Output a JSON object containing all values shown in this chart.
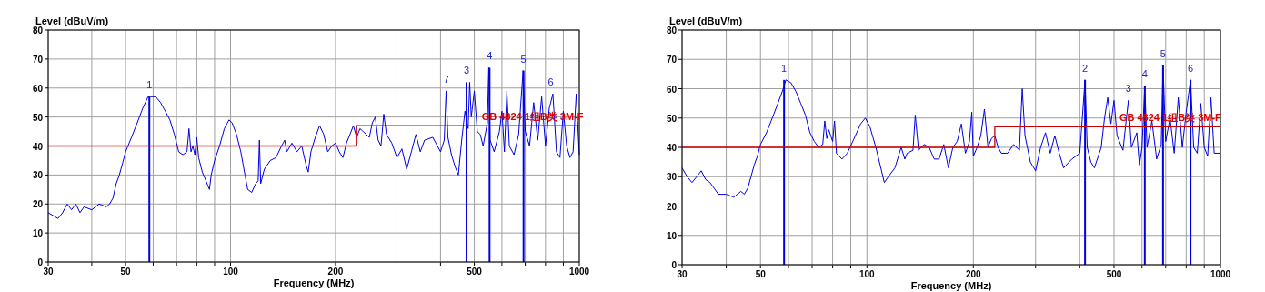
{
  "chart_data": [
    {
      "type": "line",
      "xlabel": "Frequency (MHz)",
      "ylabel": "Level (dBuV/m)",
      "log": "x",
      "grid": true,
      "xlim": [
        30,
        1000
      ],
      "ylim": [
        0,
        80
      ],
      "xticks": [
        30,
        {
          "value": 40,
          "label": null
        },
        50,
        {
          "value": 60,
          "label": null
        },
        {
          "value": 70,
          "label": null
        },
        {
          "value": 80,
          "label": null
        },
        {
          "value": 90,
          "label": null
        },
        100,
        200,
        {
          "value": 300,
          "label": null
        },
        {
          "value": 400,
          "label": null
        },
        500,
        {
          "value": 600,
          "label": null
        },
        {
          "value": 700,
          "label": null
        },
        {
          "value": 800,
          "label": null
        },
        {
          "value": 900,
          "label": null
        },
        1000
      ],
      "yticks": [
        0,
        10,
        20,
        30,
        40,
        50,
        60,
        70,
        80
      ],
      "series": [
        {
          "color": "#0000e6",
          "x": [
            30,
            31,
            32,
            33,
            34,
            35,
            36,
            37,
            38,
            40,
            42,
            44,
            45,
            46,
            47,
            48,
            49,
            50,
            52,
            54,
            56,
            58,
            59,
            61,
            63,
            65,
            67,
            69,
            70,
            71,
            73,
            75,
            76,
            77,
            78,
            79,
            80,
            81,
            83,
            85,
            87,
            88,
            90,
            93,
            96,
            99,
            101,
            104,
            107,
            110,
            112,
            115,
            118,
            120,
            121,
            122,
            125,
            130,
            135,
            140,
            143,
            145,
            150,
            155,
            160,
            165,
            167,
            170,
            175,
            180,
            185,
            190,
            195,
            200,
            205,
            210,
            215,
            220,
            225,
            230,
            235,
            240,
            250,
            255,
            260,
            265,
            270,
            275,
            280,
            290,
            300,
            310,
            320,
            330,
            340,
            350,
            360,
            380,
            400,
            410,
            415,
            420,
            430,
            440,
            450,
            460,
            470,
            480,
            485,
            490,
            500,
            510,
            520,
            530,
            545,
            550,
            555,
            570,
            590,
            600,
            610,
            620,
            630,
            650,
            670,
            690,
            700,
            720,
            740,
            760,
            780,
            800,
            820,
            840,
            860,
            880,
            900,
            920,
            940,
            960,
            980,
            1000
          ],
          "values": [
            17,
            16,
            15,
            17,
            20,
            18,
            20,
            17,
            19,
            18,
            20,
            19,
            20,
            22,
            27,
            30,
            34,
            38,
            43,
            48,
            53,
            57,
            57,
            57,
            55,
            52,
            49,
            44,
            41,
            38,
            37,
            38,
            46,
            38,
            40,
            37,
            43,
            36,
            31,
            28,
            25,
            30,
            35,
            40,
            46,
            49,
            48,
            44,
            38,
            30,
            25,
            24,
            27,
            28,
            42,
            27,
            32,
            35,
            36,
            40,
            42,
            38,
            41,
            38,
            40,
            33,
            31,
            38,
            43,
            47,
            44,
            38,
            40,
            41,
            38,
            36,
            41,
            44,
            47,
            43,
            46,
            45,
            43,
            48,
            50,
            42,
            40,
            51,
            44,
            41,
            36,
            39,
            32,
            38,
            44,
            38,
            42,
            43,
            38,
            42,
            59,
            43,
            37,
            33,
            30,
            42,
            52,
            46,
            62,
            50,
            59,
            45,
            44,
            40,
            48,
            67,
            42,
            38,
            45,
            52,
            38,
            59,
            40,
            37,
            44,
            66,
            45,
            40,
            55,
            42,
            57,
            40,
            53,
            58,
            38,
            36,
            52,
            40,
            36,
            38,
            58,
            37
          ]
        },
        {
          "type": "bar",
          "color": "#0000e6",
          "x": [
            58.5,
            475,
            553,
            692
          ],
          "values": [
            57,
            62,
            67,
            66
          ]
        },
        {
          "type": "step",
          "color": "#cc0000",
          "x": [
            30,
            230,
            1000
          ],
          "values": [
            40,
            47,
            47
          ]
        }
      ],
      "annotations": [
        {
          "text": "1",
          "x": 58.5,
          "y": 57
        },
        {
          "text": "7",
          "x": 416,
          "y": 59
        },
        {
          "text": "3",
          "x": 475,
          "y": 62
        },
        {
          "text": "4",
          "x": 553,
          "y": 67
        },
        {
          "text": "5",
          "x": 692,
          "y": 66
        },
        {
          "text": "6",
          "x": 828,
          "y": 58
        },
        {
          "text": "GB 4824 1组B类 3M-F",
          "x": 525,
          "y": 47
        }
      ]
    },
    {
      "type": "line",
      "xlabel": "Frequency (MHz)",
      "ylabel": "Level (dBuV/m)",
      "log": "x",
      "grid": true,
      "xlim": [
        30,
        1000
      ],
      "ylim": [
        0,
        80
      ],
      "xticks": [
        30,
        {
          "value": 40,
          "label": null
        },
        50,
        {
          "value": 60,
          "label": null
        },
        {
          "value": 70,
          "label": null
        },
        {
          "value": 80,
          "label": null
        },
        {
          "value": 90,
          "label": null
        },
        100,
        200,
        {
          "value": 300,
          "label": null
        },
        {
          "value": 400,
          "label": null
        },
        500,
        {
          "value": 600,
          "label": null
        },
        {
          "value": 700,
          "label": null
        },
        {
          "value": 800,
          "label": null
        },
        {
          "value": 900,
          "label": null
        },
        1000
      ],
      "yticks": [
        0,
        10,
        20,
        30,
        40,
        50,
        60,
        70,
        80
      ],
      "series": [
        {
          "color": "#0000e6",
          "x": [
            30,
            31,
            32,
            33,
            34,
            35,
            36,
            37,
            38,
            40,
            42,
            44,
            45,
            46,
            47,
            48,
            49,
            50,
            52,
            54,
            56,
            58,
            59,
            61,
            63,
            65,
            67,
            69,
            71,
            73,
            75,
            76,
            77,
            78,
            80,
            81,
            82,
            85,
            88,
            92,
            96,
            99,
            102,
            106,
            110,
            112,
            115,
            120,
            125,
            128,
            130,
            135,
            137,
            140,
            145,
            150,
            155,
            160,
            165,
            170,
            175,
            180,
            185,
            190,
            195,
            198,
            200,
            205,
            210,
            215,
            220,
            225,
            230,
            235,
            240,
            250,
            260,
            270,
            275,
            280,
            290,
            300,
            310,
            320,
            330,
            340,
            350,
            360,
            380,
            400,
            414,
            420,
            430,
            440,
            460,
            470,
            480,
            490,
            500,
            510,
            530,
            549,
            560,
            580,
            590,
            600,
            611,
            620,
            640,
            660,
            680,
            688,
            700,
            720,
            740,
            760,
            780,
            800,
            823,
            840,
            860,
            880,
            900,
            920,
            940,
            960,
            1000
          ],
          "values": [
            33,
            30,
            28,
            30,
            32,
            29,
            28,
            26,
            24,
            24,
            23,
            25,
            24,
            26,
            30,
            34,
            37,
            41,
            45,
            50,
            55,
            60,
            63,
            62,
            59,
            55,
            51,
            45,
            42,
            40,
            41,
            49,
            43,
            46,
            42,
            49,
            38,
            36,
            38,
            43,
            48,
            50,
            47,
            40,
            32,
            28,
            30,
            33,
            40,
            36,
            38,
            39,
            51,
            39,
            41,
            40,
            36,
            36,
            41,
            33,
            40,
            42,
            48,
            38,
            42,
            52,
            37,
            40,
            44,
            53,
            40,
            43,
            44,
            40,
            38,
            38,
            41,
            39,
            60,
            44,
            35,
            32,
            40,
            45,
            38,
            44,
            38,
            33,
            36,
            38,
            63,
            40,
            35,
            33,
            40,
            50,
            57,
            48,
            56,
            44,
            39,
            56,
            40,
            45,
            34,
            40,
            61,
            40,
            49,
            36,
            41,
            68,
            42,
            50,
            38,
            57,
            40,
            52,
            63,
            40,
            38,
            55,
            40,
            37,
            57,
            38,
            38
          ]
        },
        {
          "type": "bar",
          "color": "#0000e6",
          "x": [
            58.3,
            414,
            611,
            688,
            823
          ],
          "values": [
            63,
            63,
            61,
            68,
            63
          ]
        },
        {
          "type": "step",
          "color": "#cc0000",
          "x": [
            30,
            230,
            1000
          ],
          "values": [
            40,
            47,
            47
          ]
        }
      ],
      "annotations": [
        {
          "text": "1",
          "x": 58.3,
          "y": 63
        },
        {
          "text": "2",
          "x": 414,
          "y": 63
        },
        {
          "text": "3",
          "x": 549,
          "y": 56
        },
        {
          "text": "4",
          "x": 611,
          "y": 61
        },
        {
          "text": "5",
          "x": 688,
          "y": 68
        },
        {
          "text": "6",
          "x": 823,
          "y": 63
        },
        {
          "text": "GB 4824 1组B类 3M-F",
          "x": 518,
          "y": 47
        }
      ]
    }
  ]
}
